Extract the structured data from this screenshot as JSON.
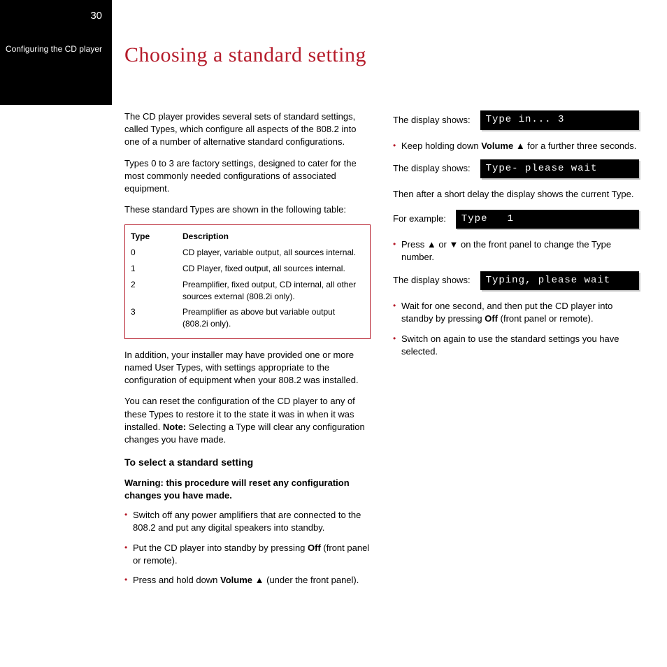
{
  "meta": {
    "page_number": "30",
    "section_name": "Configuring the CD player",
    "title": "Choosing a standard setting",
    "accent_color": "#b51b2a",
    "title_fontsize": 30
  },
  "left_col": {
    "intro1": "The CD player provides several sets of standard settings, called Types, which configure all aspects of the 808.2 into one of a number of alternative standard configurations.",
    "intro2": "Types 0 to 3 are factory settings, designed to cater for the most commonly needed configurations of associated equipment.",
    "intro3": "These standard Types are shown in the following table:",
    "table": {
      "border_color": "#b51b2a",
      "columns": [
        "Type",
        "Description"
      ],
      "rows": [
        [
          "0",
          "CD player, variable output, all sources internal."
        ],
        [
          "1",
          "CD Player, fixed output, all sources internal."
        ],
        [
          "2",
          "Preamplifier, fixed output, CD internal, all other sources external (808.2i only)."
        ],
        [
          "3",
          "Preamplifier as above but variable output (808.2i only)."
        ]
      ]
    },
    "after1": "In addition, your installer may have provided one or more named User Types, with settings appropriate to the configuration of equipment when your 808.2 was installed.",
    "after2_pre": "You can reset the configuration of the CD player to any of these Types to restore it to the state it was in when it was installed. ",
    "after2_bold": "Note:",
    "after2_post": " Selecting a Type will clear any configuration changes you have made.",
    "subheading": "To select a standard setting",
    "warning": "Warning: this procedure will reset any configuration changes you have made.",
    "steps": [
      {
        "pre": "Switch off any power amplifiers that are connected to the 808.2 and put any digital speakers into standby."
      },
      {
        "pre": "Put the CD player into standby by pressing ",
        "bold": "Off",
        "post": " (front panel or remote)."
      },
      {
        "pre": "Press and hold down ",
        "bold": "Volume",
        "post": " ▲ (under the front panel)."
      }
    ]
  },
  "right_col": {
    "display_label_generic": "The display shows:",
    "display_label_example": "For example:",
    "display1": "Type in... 3",
    "step_keep_pre": "Keep holding down ",
    "step_keep_bold": "Volume",
    "step_keep_post": " ▲ for a further three seconds.",
    "display2": "Type- please wait",
    "then_text": "Then after a short delay the display shows the current Type.",
    "display3": "Type   1",
    "step_press": "Press ▲ or ▼ on the front panel to change the Type number.",
    "display4": "Typing, please wait",
    "step_wait_pre": "Wait for one second, and then put the CD player into standby by pressing ",
    "step_wait_bold": "Off",
    "step_wait_post": " (front panel or remote).",
    "step_switch": "Switch on again to use the standard settings you have selected."
  },
  "bullet_color": "#b51b2a"
}
